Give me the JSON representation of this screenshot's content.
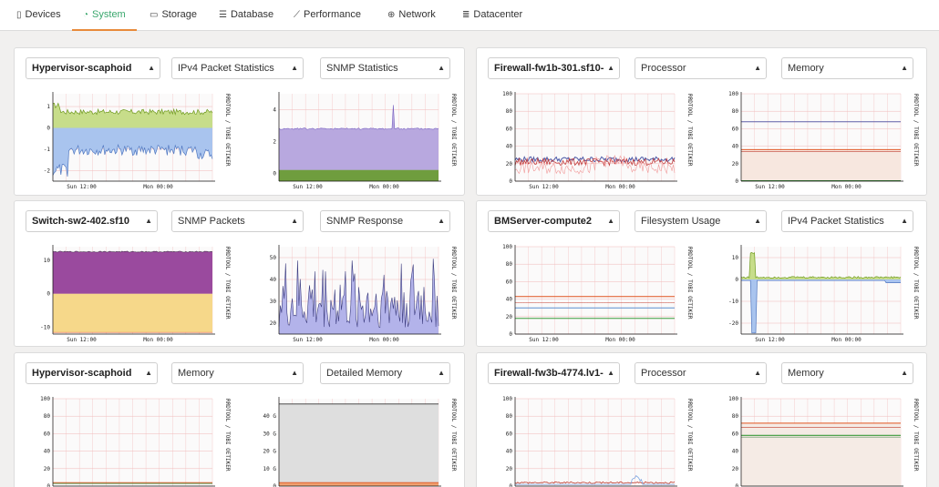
{
  "nav": {
    "tabs": [
      {
        "label": "Devices",
        "icon": "tablet-icon"
      },
      {
        "label": "System",
        "icon": "dashboard-icon",
        "active": true
      },
      {
        "label": "Storage",
        "icon": "hard-drive-icon"
      },
      {
        "label": "Database",
        "icon": "database-icon"
      },
      {
        "label": "Performance",
        "icon": "line-chart-icon"
      },
      {
        "label": "Network",
        "icon": "globe-icon"
      },
      {
        "label": "Datacenter",
        "icon": "server-icon"
      }
    ]
  },
  "colors": {
    "accent": "#3aa76d",
    "active_underline": "#e88a3a",
    "grid": "#f2c4c4"
  },
  "rrd_label": "RRDTOOL / TOBI OETIKER",
  "time_labels": [
    "Sun 12:00",
    "Mon 00:00"
  ],
  "panels": [
    {
      "host": "Hypervisor-scaphoid",
      "graph1": "IPv4 Packet Statistics",
      "graph2": "SNMP Statistics",
      "charts": [
        {
          "kind": "ipv4",
          "yticks": [
            "1",
            "0",
            "-1",
            "-2"
          ],
          "yvals": [
            1,
            0,
            -1,
            -2
          ],
          "ylim": [
            -2.5,
            1.6
          ]
        },
        {
          "kind": "snmpstats",
          "yticks": [
            "4",
            "2",
            "0"
          ],
          "yvals": [
            4,
            2,
            0
          ],
          "ylim": [
            -0.5,
            5
          ]
        }
      ]
    },
    {
      "host": "Firewall-fw1b-301.sf10-",
      "graph1": "Processor",
      "graph2": "Memory",
      "charts": [
        {
          "kind": "processor",
          "yticks": [
            "100",
            "80",
            "60",
            "40",
            "20",
            "0"
          ],
          "yvals": [
            100,
            80,
            60,
            40,
            20,
            0
          ],
          "ylim": [
            0,
            100
          ]
        },
        {
          "kind": "memory1",
          "yticks": [
            "100",
            "80",
            "60",
            "40",
            "20",
            "0"
          ],
          "yvals": [
            100,
            80,
            60,
            40,
            20,
            0
          ],
          "ylim": [
            0,
            100
          ]
        }
      ]
    },
    {
      "host": "Switch-sw2-402.sf10",
      "graph1": "SNMP Packets",
      "graph2": "SNMP Response",
      "charts": [
        {
          "kind": "snmppackets",
          "yticks": [
            "10",
            "0",
            "-10"
          ],
          "yvals": [
            10,
            0,
            -10
          ],
          "ylim": [
            -12,
            14
          ]
        },
        {
          "kind": "snmpresponse",
          "yticks": [
            "50",
            "40",
            "30",
            "20"
          ],
          "yvals": [
            50,
            40,
            30,
            20
          ],
          "ylim": [
            15,
            55
          ]
        }
      ]
    },
    {
      "host": "BMServer-compute2",
      "graph1": "Filesystem Usage",
      "graph2": "IPv4 Packet Statistics",
      "charts": [
        {
          "kind": "filesystem",
          "yticks": [
            "100",
            "80",
            "60",
            "40",
            "20",
            "0"
          ],
          "yvals": [
            100,
            80,
            60,
            40,
            20,
            0
          ],
          "ylim": [
            0,
            100
          ]
        },
        {
          "kind": "ipv4b",
          "yticks": [
            "10",
            "0",
            "-10",
            "-20"
          ],
          "yvals": [
            10,
            0,
            -10,
            -20
          ],
          "ylim": [
            -25,
            15
          ]
        }
      ]
    },
    {
      "host": "Hypervisor-scaphoid",
      "graph1": "Memory",
      "graph2": "Detailed Memory",
      "charts": [
        {
          "kind": "memory2",
          "yticks": [
            "100",
            "80",
            "60",
            "40",
            "20",
            "0"
          ],
          "yvals": [
            100,
            80,
            60,
            40,
            20,
            0
          ],
          "ylim": [
            0,
            100
          ]
        },
        {
          "kind": "detailedmem",
          "yticks": [
            "40 G",
            "30 G",
            "20 G",
            "10 G",
            "0"
          ],
          "yvals": [
            40,
            30,
            20,
            10,
            0
          ],
          "ylim": [
            0,
            50
          ]
        }
      ]
    },
    {
      "host": "Firewall-fw3b-4774.lv1-",
      "graph1": "Processor",
      "graph2": "Memory",
      "charts": [
        {
          "kind": "processor2",
          "yticks": [
            "100",
            "80",
            "60",
            "40",
            "20",
            "0"
          ],
          "yvals": [
            100,
            80,
            60,
            40,
            20,
            0
          ],
          "ylim": [
            0,
            100
          ]
        },
        {
          "kind": "memory3",
          "yticks": [
            "100",
            "80",
            "60",
            "40",
            "20",
            "0"
          ],
          "yvals": [
            100,
            80,
            60,
            40,
            20,
            0
          ],
          "ylim": [
            0,
            100
          ]
        }
      ]
    }
  ]
}
